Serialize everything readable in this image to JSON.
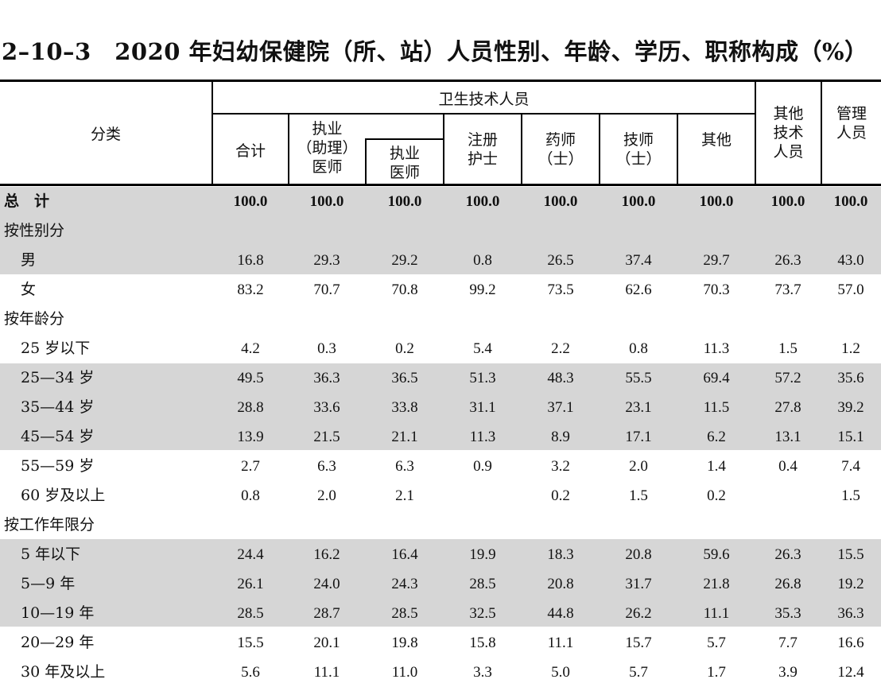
{
  "title": "2–10–3　2020 年妇幼保健院（所、站）人员性别、年龄、学历、职称构成（%）",
  "header": {
    "category": "分类",
    "health_tech": "卫生技术人员",
    "total": "合计",
    "doctor_assistant": [
      "执业",
      "（助理）",
      "医师"
    ],
    "doctor": [
      "执业",
      "医师"
    ],
    "nurse": [
      "注册",
      "护士"
    ],
    "pharmacist": [
      "药师",
      "（士）"
    ],
    "technician": [
      "技师",
      "（士）"
    ],
    "other": "其他",
    "other_tech": [
      "其他",
      "技术",
      "人员"
    ],
    "management": [
      "管理",
      "人员"
    ]
  },
  "rows": [
    {
      "label": "总　计",
      "values": [
        "100.0",
        "100.0",
        "100.0",
        "100.0",
        "100.0",
        "100.0",
        "100.0",
        "100.0",
        "100.0"
      ],
      "bold": true,
      "indent": false
    },
    {
      "label": "按性别分",
      "values": [
        "",
        "",
        "",
        "",
        "",
        "",
        "",
        "",
        ""
      ],
      "bold": false,
      "indent": false
    },
    {
      "label": "男",
      "values": [
        "16.8",
        "29.3",
        "29.2",
        "0.8",
        "26.5",
        "37.4",
        "29.7",
        "26.3",
        "43.0"
      ],
      "bold": false,
      "indent": true
    },
    {
      "label": "女",
      "values": [
        "83.2",
        "70.7",
        "70.8",
        "99.2",
        "73.5",
        "62.6",
        "70.3",
        "73.7",
        "57.0"
      ],
      "bold": false,
      "indent": true
    },
    {
      "label": "按年龄分",
      "values": [
        "",
        "",
        "",
        "",
        "",
        "",
        "",
        "",
        ""
      ],
      "bold": false,
      "indent": false
    },
    {
      "label": "25 岁以下",
      "values": [
        "4.2",
        "0.3",
        "0.2",
        "5.4",
        "2.2",
        "0.8",
        "11.3",
        "1.5",
        "1.2"
      ],
      "bold": false,
      "indent": true
    },
    {
      "label": "25—34 岁",
      "values": [
        "49.5",
        "36.3",
        "36.5",
        "51.3",
        "48.3",
        "55.5",
        "69.4",
        "57.2",
        "35.6"
      ],
      "bold": false,
      "indent": true
    },
    {
      "label": "35—44 岁",
      "values": [
        "28.8",
        "33.6",
        "33.8",
        "31.1",
        "37.1",
        "23.1",
        "11.5",
        "27.8",
        "39.2"
      ],
      "bold": false,
      "indent": true
    },
    {
      "label": "45—54 岁",
      "values": [
        "13.9",
        "21.5",
        "21.1",
        "11.3",
        "8.9",
        "17.1",
        "6.2",
        "13.1",
        "15.1"
      ],
      "bold": false,
      "indent": true
    },
    {
      "label": "55—59 岁",
      "values": [
        "2.7",
        "6.3",
        "6.3",
        "0.9",
        "3.2",
        "2.0",
        "1.4",
        "0.4",
        "7.4"
      ],
      "bold": false,
      "indent": true
    },
    {
      "label": "60 岁及以上",
      "values": [
        "0.8",
        "2.0",
        "2.1",
        "",
        "0.2",
        "1.5",
        "0.2",
        "",
        "1.5"
      ],
      "bold": false,
      "indent": true
    },
    {
      "label": "按工作年限分",
      "values": [
        "",
        "",
        "",
        "",
        "",
        "",
        "",
        "",
        ""
      ],
      "bold": false,
      "indent": false
    },
    {
      "label": "5 年以下",
      "values": [
        "24.4",
        "16.2",
        "16.4",
        "19.9",
        "18.3",
        "20.8",
        "59.6",
        "26.3",
        "15.5"
      ],
      "bold": false,
      "indent": true
    },
    {
      "label": "5—9 年",
      "values": [
        "26.1",
        "24.0",
        "24.3",
        "28.5",
        "20.8",
        "31.7",
        "21.8",
        "26.8",
        "19.2"
      ],
      "bold": false,
      "indent": true
    },
    {
      "label": "10—19 年",
      "values": [
        "28.5",
        "28.7",
        "28.5",
        "32.5",
        "44.8",
        "26.2",
        "11.1",
        "35.3",
        "36.3"
      ],
      "bold": false,
      "indent": true
    },
    {
      "label": "20—29 年",
      "values": [
        "15.5",
        "20.1",
        "19.8",
        "15.8",
        "11.1",
        "15.7",
        "5.7",
        "7.7",
        "16.6"
      ],
      "bold": false,
      "indent": true
    },
    {
      "label": "30 年及以上",
      "values": [
        "5.6",
        "11.1",
        "11.0",
        "3.3",
        "5.0",
        "5.7",
        "1.7",
        "3.9",
        "12.4"
      ],
      "bold": false,
      "indent": true
    }
  ]
}
